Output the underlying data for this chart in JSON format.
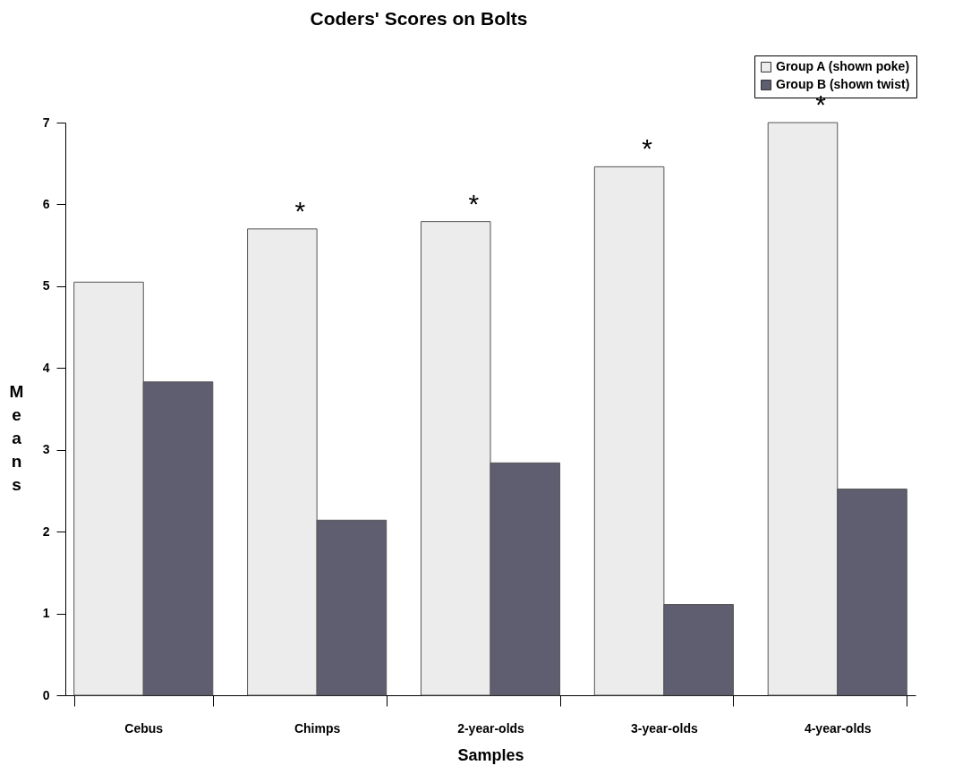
{
  "chart_data": {
    "type": "bar",
    "title": "Coders' Scores on Bolts",
    "xlabel": "Samples",
    "ylabel": "Means",
    "categories": [
      "Cebus",
      "Chimps",
      "2-year-olds",
      "3-year-olds",
      "4-year-olds"
    ],
    "series": [
      {
        "name": "Group A (shown poke)",
        "color": "#ececec",
        "values": [
          5.05,
          5.7,
          5.79,
          6.46,
          7.0
        ]
      },
      {
        "name": "Group B (shown twist)",
        "color": "#5e5e70",
        "values": [
          3.83,
          2.14,
          2.84,
          1.11,
          2.52
        ]
      }
    ],
    "ylim": [
      0,
      7
    ],
    "yticks": [
      0,
      1,
      2,
      3,
      4,
      5,
      6,
      7
    ],
    "grid": false,
    "legend": "top right",
    "annotations": [
      {
        "text": "*",
        "x": "Chimps",
        "y": 5.7
      },
      {
        "text": "*",
        "x": "2-year-olds",
        "y": 5.79
      },
      {
        "text": "*",
        "x": "3-year-olds",
        "y": 6.46
      },
      {
        "text": "*",
        "x": "4-year-olds",
        "y": 7.0
      }
    ]
  }
}
